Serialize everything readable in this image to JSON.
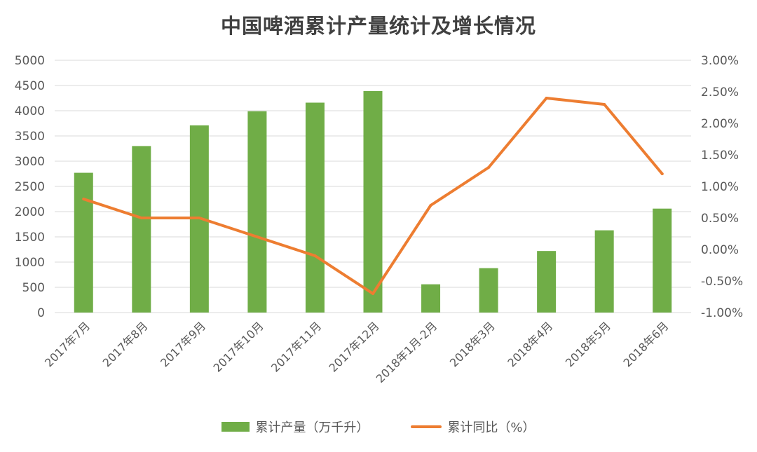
{
  "chart_data": {
    "type": "bar",
    "title": "中国啤酒累计产量统计及增长情况",
    "categories": [
      "2017年7月",
      "2017年8月",
      "2017年9月",
      "2017年10月",
      "2017年11月",
      "2017年12月",
      "2018年1月-2月",
      "2018年3月",
      "2018年4月",
      "2018年5月",
      "2018年6月"
    ],
    "series": [
      {
        "name": "累计产量（万千升）",
        "type": "bar",
        "axis": "left",
        "color": "#70ad47",
        "values": [
          2770,
          3300,
          3710,
          3990,
          4160,
          4390,
          560,
          880,
          1220,
          1630,
          2060
        ]
      },
      {
        "name": "累计同比（%）",
        "type": "line",
        "axis": "right",
        "color": "#ed7d31",
        "values": [
          0.8,
          0.5,
          0.5,
          0.2,
          -0.1,
          -0.7,
          0.7,
          1.3,
          2.4,
          2.3,
          1.2
        ]
      }
    ],
    "ylim_left": [
      0,
      5000
    ],
    "yticks_left": [
      "5000",
      "4500",
      "4000",
      "3500",
      "3000",
      "2500",
      "2000",
      "1500",
      "1000",
      "500",
      "0"
    ],
    "ylim_right": [
      -1.0,
      3.0
    ],
    "yticks_right": [
      "3.00%",
      "2.50%",
      "2.00%",
      "1.50%",
      "1.00%",
      "0.50%",
      "0.00%",
      "-0.50%",
      "-1.00%"
    ],
    "grid": true,
    "legend_position": "bottom"
  }
}
